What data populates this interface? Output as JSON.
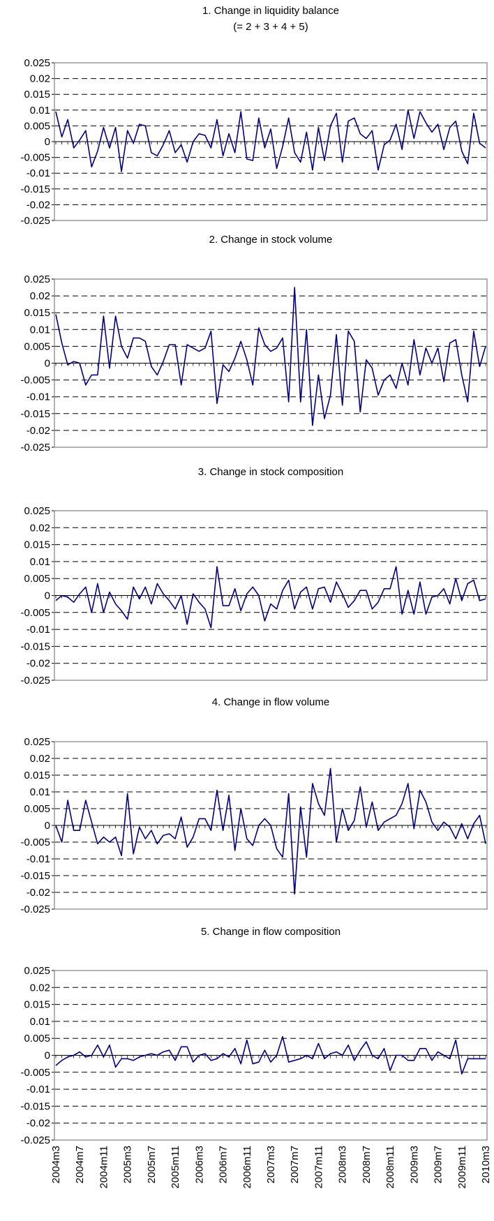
{
  "chart_data": [
    {
      "type": "line",
      "title": "1. Change in liquidity balance",
      "subtitle": "(= 2 + 3 + 4 + 5)",
      "ylim": [
        -0.025,
        0.025
      ],
      "ytick_labels": [
        "0.025",
        "0.02",
        "0.015",
        "0.01",
        "0.005",
        "0",
        "-0.005",
        "-0.01",
        "-0.015",
        "-0.02",
        "-0.025"
      ],
      "grid": "horizontal-dashed",
      "series": [
        {
          "color": "#000080",
          "values": [
            0.0095,
            0.0015,
            0.007,
            -0.002,
            0.0005,
            0.0035,
            -0.008,
            -0.003,
            0.0045,
            -0.002,
            0.0045,
            -0.0095,
            0.0035,
            -0.0005,
            0.0055,
            0.005,
            -0.0035,
            -0.0045,
            -0.001,
            0.0035,
            -0.0035,
            -0.001,
            -0.0065,
            0.0,
            0.0025,
            0.002,
            -0.002,
            0.007,
            -0.0045,
            0.0025,
            -0.0035,
            0.0095,
            -0.0055,
            -0.006,
            0.0075,
            -0.002,
            0.004,
            -0.0085,
            -0.0015,
            0.0075,
            -0.0035,
            -0.0065,
            0.003,
            -0.009,
            0.0045,
            -0.006,
            0.005,
            0.009,
            -0.0065,
            0.0065,
            0.0075,
            0.0025,
            0.001,
            0.0035,
            -0.009,
            -0.001,
            0.0005,
            0.0055,
            -0.0025,
            0.01,
            0.001,
            0.0095,
            0.006,
            0.003,
            0.0055,
            -0.0025,
            0.0045,
            0.0065,
            -0.003,
            -0.007,
            0.009,
            -0.0005,
            -0.002
          ]
        }
      ]
    },
    {
      "type": "line",
      "title": "2. Change in stock volume",
      "ylim": [
        -0.025,
        0.025
      ],
      "ytick_labels": [
        "0.025",
        "0.02",
        "0.015",
        "0.01",
        "0.005",
        "0",
        "-0.005",
        "-0.01",
        "-0.015",
        "-0.02",
        "-0.025"
      ],
      "grid": "horizontal-dashed",
      "series": [
        {
          "color": "#000080",
          "values": [
            0.0145,
            0.006,
            -0.0005,
            0.0005,
            0.0,
            -0.0065,
            -0.0035,
            -0.0035,
            0.014,
            -0.0015,
            0.014,
            0.005,
            0.0015,
            0.0075,
            0.0075,
            0.0065,
            -0.001,
            -0.0035,
            0.0005,
            0.0055,
            0.0055,
            -0.0065,
            0.0055,
            0.0045,
            0.0035,
            0.0045,
            0.0095,
            -0.012,
            -0.0005,
            -0.0025,
            0.0015,
            0.0065,
            0.001,
            -0.0065,
            0.0105,
            0.0055,
            0.0035,
            0.0045,
            0.0075,
            -0.0115,
            0.0225,
            -0.0115,
            0.01,
            -0.0185,
            -0.0035,
            -0.0165,
            -0.0095,
            0.0085,
            -0.0125,
            0.0095,
            0.0065,
            -0.0145,
            0.001,
            -0.0015,
            -0.0095,
            -0.005,
            -0.0035,
            -0.0075,
            0.0,
            -0.0065,
            0.007,
            -0.0035,
            0.0045,
            0.0,
            0.0045,
            -0.0055,
            0.006,
            0.007,
            -0.0035,
            -0.0115,
            0.0095,
            -0.001,
            0.005
          ]
        }
      ]
    },
    {
      "type": "line",
      "title": "3. Change in stock composition",
      "ylim": [
        -0.025,
        0.025
      ],
      "ytick_labels": [
        "0.025",
        "0.02",
        "0.015",
        "0.01",
        "0.005",
        "0",
        "-0.005",
        "-0.01",
        "-0.015",
        "-0.02",
        "-0.025"
      ],
      "grid": "horizontal-dashed",
      "series": [
        {
          "color": "#000080",
          "values": [
            -0.0015,
            0.0,
            -0.0005,
            -0.002,
            0.0005,
            0.0025,
            -0.005,
            0.0035,
            -0.005,
            0.001,
            -0.0025,
            -0.0045,
            -0.007,
            0.0025,
            -0.001,
            0.0025,
            -0.0025,
            0.0035,
            0.0005,
            -0.0015,
            -0.004,
            0.0,
            -0.0085,
            0.0005,
            -0.002,
            -0.004,
            -0.0095,
            0.0085,
            -0.003,
            -0.003,
            0.002,
            -0.0045,
            0.0005,
            0.0025,
            0.0,
            -0.0075,
            -0.0025,
            -0.004,
            0.0015,
            0.0045,
            -0.004,
            0.001,
            0.0025,
            -0.004,
            0.002,
            0.0025,
            -0.002,
            0.004,
            0.0005,
            -0.0035,
            -0.0015,
            0.0015,
            0.0015,
            -0.004,
            -0.002,
            0.002,
            0.002,
            0.0085,
            -0.0055,
            0.0015,
            -0.0055,
            0.004,
            -0.0055,
            -0.0005,
            0.0,
            0.002,
            -0.0025,
            0.005,
            -0.0015,
            0.0035,
            0.0045,
            -0.0015,
            -0.001
          ]
        }
      ]
    },
    {
      "type": "line",
      "title": "4. Change in flow volume",
      "ylim": [
        -0.025,
        0.025
      ],
      "ytick_labels": [
        "0.025",
        "0.02",
        "0.015",
        "0.01",
        "0.005",
        "0",
        "-0.005",
        "-0.01",
        "-0.015",
        "-0.02",
        "-0.025"
      ],
      "grid": "horizontal-dashed",
      "series": [
        {
          "color": "#000080",
          "values": [
            0.0,
            -0.005,
            0.0075,
            -0.0015,
            -0.0015,
            0.0075,
            0.001,
            -0.0055,
            -0.0035,
            -0.005,
            -0.0035,
            -0.009,
            0.0095,
            -0.0085,
            -0.0005,
            -0.004,
            -0.0015,
            -0.0055,
            -0.003,
            -0.0025,
            -0.004,
            0.0025,
            -0.0065,
            -0.0035,
            0.002,
            0.002,
            -0.0015,
            0.0105,
            -0.0015,
            0.009,
            -0.0075,
            0.005,
            -0.004,
            -0.006,
            0.0,
            0.002,
            0.0,
            -0.007,
            -0.0095,
            0.0095,
            -0.0205,
            0.0055,
            -0.0095,
            0.0125,
            0.0065,
            0.003,
            0.017,
            -0.005,
            0.005,
            -0.0015,
            0.0015,
            0.0115,
            -0.0005,
            0.007,
            -0.0015,
            0.001,
            0.002,
            0.003,
            0.0065,
            0.0125,
            -0.001,
            0.0105,
            0.007,
            0.001,
            -0.0015,
            0.001,
            -0.0005,
            -0.004,
            0.0005,
            -0.004,
            0.0005,
            0.003,
            -0.0055
          ]
        }
      ]
    },
    {
      "type": "line",
      "title": "5. Change in flow composition",
      "ylim": [
        -0.025,
        0.025
      ],
      "ytick_labels": [
        "0.025",
        "0.02",
        "0.015",
        "0.01",
        "0.005",
        "0",
        "-0.005",
        "-0.01",
        "-0.015",
        "-0.02",
        "-0.025"
      ],
      "grid": "horizontal-dashed",
      "x_labels": [
        "2004m3",
        "2004m7",
        "2004m11",
        "2005m3",
        "2005m7",
        "2005m11",
        "2006m3",
        "2006m7",
        "2006m11",
        "2007m3",
        "2007m7",
        "2007m11",
        "2008m3",
        "2008m7",
        "2008m11",
        "2009m3",
        "2009m7",
        "2009m11",
        "2010m3"
      ],
      "series": [
        {
          "color": "#000080",
          "values": [
            -0.003,
            -0.0015,
            -0.0005,
            0.0,
            0.001,
            -0.0005,
            0.0,
            0.003,
            -0.0005,
            0.003,
            -0.0035,
            -0.001,
            -0.001,
            -0.0015,
            -0.0005,
            0.0,
            0.0005,
            0.0,
            0.001,
            0.0015,
            -0.0015,
            0.0025,
            0.0025,
            -0.002,
            0.0,
            0.0005,
            -0.0015,
            -0.001,
            0.0005,
            -0.0005,
            0.002,
            -0.0025,
            0.0045,
            -0.0025,
            -0.002,
            0.0015,
            -0.002,
            0.0,
            0.0055,
            -0.002,
            -0.0015,
            -0.001,
            0.0,
            -0.001,
            0.0035,
            -0.001,
            0.0005,
            0.001,
            0.0,
            0.003,
            -0.0015,
            0.0015,
            0.004,
            0.0,
            -0.001,
            0.002,
            -0.0045,
            0.0,
            0.0,
            -0.0015,
            -0.0015,
            0.002,
            0.002,
            -0.0015,
            0.001,
            0.0,
            -0.001,
            0.0045,
            -0.0055,
            -0.001,
            -0.001,
            -0.001,
            -0.001
          ]
        }
      ]
    }
  ]
}
